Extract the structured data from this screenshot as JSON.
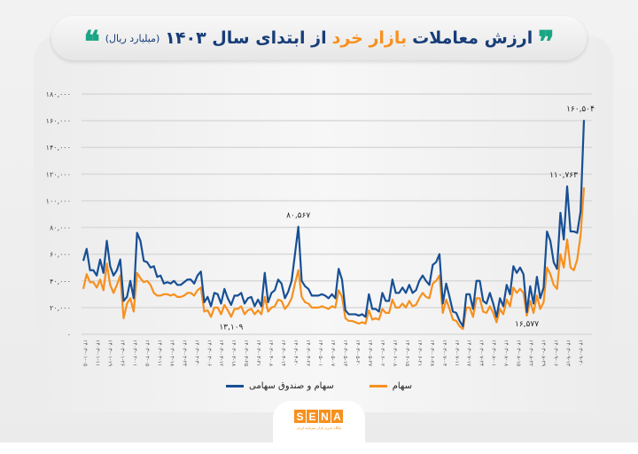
{
  "title": {
    "prefix": "ارزش معاملات",
    "accent": "بازار خرد",
    "suffix": "از ابتدای سال ۱۴۰۳",
    "unit": "(میلیارد ریال)",
    "quote_open": "❞",
    "quote_close": "❝"
  },
  "colors": {
    "blue": "#174f94",
    "orange": "#f7901e",
    "quote": "#1aa585",
    "title": "#173d78"
  },
  "logo": {
    "text": "SENA",
    "letters": [
      "S",
      "E",
      "N",
      "A"
    ],
    "tagline": "پایگاه خبری بازار سرمایه ایران"
  },
  "chart_data": {
    "type": "line",
    "title": "ارزش معاملات بازار خرد از ابتدای سال ۱۴۰۳ (میلیارد ریال)",
    "ylim": [
      0,
      180000
    ],
    "grid": true,
    "legend_position": "bottom",
    "y_ticks": [
      0,
      20000,
      40000,
      60000,
      80000,
      100000,
      120000,
      140000,
      160000,
      180000
    ],
    "y_tick_labels": [
      "۰",
      "۲۰,۰۰۰",
      "۴۰,۰۰۰",
      "۶۰,۰۰۰",
      "۸۰,۰۰۰",
      "۱۰۰,۰۰۰",
      "۱۲۰,۰۰۰",
      "۱۴۰,۰۰۰",
      "۱۶۰,۰۰۰",
      "۱۸۰,۰۰۰"
    ],
    "x_tick_labels": [
      "۱۴۰۳-۰۱-۰۵",
      "۱۴۰۳-۰۱-۱۱",
      "۱۴۰۳-۰۱-۱۹",
      "۱۴۰۳-۰۱-۲۶",
      "۱۴۰۳-۰۲-۰۱",
      "۱۴۰۳-۰۲-۰۵",
      "۱۴۰۳-۰۲-۱۱",
      "۱۴۰۳-۰۲-۱۸",
      "۱۴۰۳-۰۲-۲۴",
      "۱۴۰۳-۰۲-۳۰",
      "۱۴۰۳-۰۳-۰۶",
      "۱۴۰۳-۰۳-۱۲",
      "۱۴۰۳-۰۳-۱۸",
      "۱۴۰۳-۰۳-۲۵",
      "۱۴۰۳-۰۳-۳۱",
      "۱۴۰۳-۰۴-۰۸",
      "۱۴۰۳-۰۴-۱۴",
      "۱۴۰۳-۰۴-۲۰",
      "۱۴۰۳-۰۴-۲۶",
      "۱۴۰۳-۰۵-۰۱",
      "۱۴۰۳-۰۵-۰۷",
      "۱۴۰۳-۰۵-۱۳",
      "۱۴۰۳-۰۵-۲۰",
      "۱۴۰۳-۰۵-۲۷",
      "۱۴۰۳-۰۶-۰۲",
      "۱۴۰۳-۰۶-۰۸",
      "۱۴۰۳-۰۶-۱۵",
      "۱۴۰۳-۰۶-۲۱",
      "۱۴۰۳-۰۶-۲۸",
      "۱۴۰۳-۰۷-۰۴",
      "۱۴۰۳-۰۷-۱۱",
      "۱۴۰۳-۰۷-۱۷",
      "۱۴۰۳-۰۷-۲۴",
      "۱۴۰۳-۰۸-۰۱",
      "۱۴۰۳-۰۸-۰۸",
      "۱۴۰۳-۰۸-۱۵",
      "۱۴۰۳-۰۸-۲۲",
      "۱۴۰۳-۰۸-۲۹",
      "۱۴۰۳-۰۹-۰۶",
      "۱۴۰۳-۰۹-۱۳",
      "۱۴۰۳-۰۹-۲۰"
    ],
    "series": [
      {
        "name": "سهام و صندوق سهامی",
        "color": "#174f94",
        "values": [
          55000,
          64000,
          48000,
          48000,
          44000,
          56000,
          46000,
          70000,
          51000,
          44000,
          48000,
          56000,
          25000,
          28000,
          40000,
          27000,
          76000,
          70000,
          55000,
          54000,
          50000,
          51000,
          43000,
          44000,
          38000,
          39000,
          38000,
          40000,
          37000,
          37000,
          39000,
          41000,
          41000,
          38000,
          44000,
          47000,
          24000,
          28000,
          21000,
          31000,
          30000,
          23000,
          34000,
          27000,
          22000,
          29000,
          29000,
          31000,
          23000,
          27000,
          28000,
          21000,
          26000,
          21000,
          46000,
          24000,
          31000,
          33000,
          41000,
          38000,
          27000,
          32000,
          40000,
          60000,
          80567,
          40000,
          36000,
          34000,
          29000,
          29000,
          29000,
          30000,
          29000,
          27000,
          30000,
          27000,
          49000,
          41000,
          18000,
          15000,
          15000,
          15000,
          14000,
          15000,
          13000,
          30000,
          19000,
          19000,
          17000,
          31000,
          25000,
          25000,
          41000,
          31000,
          31000,
          35000,
          31000,
          37000,
          31000,
          33000,
          40000,
          44000,
          40000,
          37000,
          52000,
          54000,
          60000,
          23000,
          38000,
          28000,
          17000,
          16000,
          10000,
          6000,
          30000,
          30000,
          19000,
          40000,
          40000,
          25000,
          23000,
          31000,
          23000,
          13000,
          27000,
          21000,
          37000,
          30000,
          51000,
          46000,
          50000,
          45000,
          16577,
          36000,
          23000,
          43000,
          27000,
          35000,
          77000,
          70000,
          54000,
          49000,
          91000,
          71000,
          110763,
          77000,
          77000,
          76000,
          92000,
          160504
        ]
      },
      {
        "name": "سهام",
        "color": "#f7901e",
        "values": [
          34000,
          45000,
          39000,
          39000,
          35000,
          41000,
          33000,
          53000,
          37000,
          31000,
          37000,
          44000,
          12000,
          23000,
          27000,
          17000,
          46000,
          42000,
          39000,
          40000,
          37000,
          31000,
          29000,
          29000,
          30000,
          30000,
          29000,
          30000,
          28000,
          28000,
          29000,
          31000,
          31000,
          29000,
          33000,
          35000,
          17000,
          18000,
          13000,
          20000,
          20000,
          15000,
          22000,
          18000,
          13109,
          19000,
          19000,
          21000,
          15000,
          18000,
          19000,
          15000,
          18000,
          15000,
          28000,
          17000,
          20000,
          21000,
          26000,
          25000,
          19000,
          22000,
          27000,
          38000,
          48000,
          28000,
          24000,
          23000,
          20000,
          20000,
          20000,
          21000,
          20000,
          19000,
          21000,
          20000,
          33000,
          28000,
          12000,
          10000,
          10000,
          9000,
          8000,
          9000,
          8000,
          18000,
          11000,
          12000,
          11000,
          19000,
          16000,
          16000,
          26000,
          20000,
          20000,
          23000,
          20000,
          25000,
          21000,
          22000,
          27000,
          31000,
          28000,
          27000,
          38000,
          40000,
          44000,
          16000,
          26000,
          19000,
          11000,
          10000,
          6000,
          4000,
          20000,
          20000,
          13000,
          27000,
          27000,
          17000,
          16000,
          21000,
          16000,
          9000,
          19000,
          15000,
          26000,
          21000,
          35000,
          31000,
          34000,
          31000,
          14000,
          25000,
          16000,
          29000,
          19000,
          24000,
          50000,
          45000,
          37000,
          34000,
          60000,
          50000,
          71000,
          50000,
          48000,
          56000,
          74000,
          110000
        ]
      }
    ],
    "annotations": [
      {
        "text": "۱۶۰,۵۰۴",
        "series": 0,
        "index": 149,
        "pos": "above"
      },
      {
        "text": "۱۱۰,۷۶۳",
        "series": 0,
        "index": 144,
        "pos": "above"
      },
      {
        "text": "۸۰,۵۶۷",
        "series": 0,
        "index": 64,
        "pos": "above"
      },
      {
        "text": "۱۳,۱۰۹",
        "series": 1,
        "index": 44,
        "pos": "below"
      },
      {
        "text": "۱۶,۵۷۷",
        "series": 0,
        "index": 132,
        "pos": "below"
      }
    ]
  }
}
